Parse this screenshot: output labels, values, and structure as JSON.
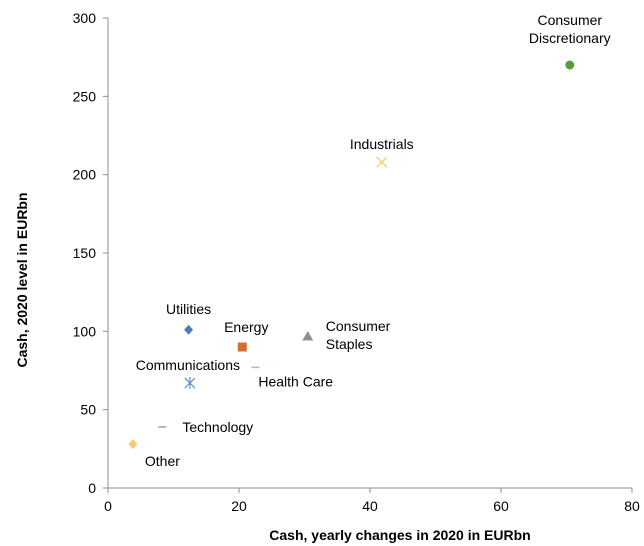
{
  "chart_data": {
    "type": "scatter",
    "xlabel": "Cash, yearly changes in 2020 in EURbn",
    "ylabel": "Cash, 2020 level in EURbn",
    "xlim": [
      0,
      80
    ],
    "ylim": [
      0,
      300
    ],
    "xticks": [
      "0",
      "20",
      "40",
      "60",
      "80"
    ],
    "yticks": [
      "0",
      "50",
      "100",
      "150",
      "200",
      "250",
      "300"
    ],
    "grid": false,
    "legend": "none",
    "points": [
      {
        "label": [
          "Consumer",
          "Discretionary"
        ],
        "x": 70.5,
        "y": 270,
        "marker": "circle",
        "color": "#5b9a3c"
      },
      {
        "label": [
          "Industrials"
        ],
        "x": 41.8,
        "y": 208,
        "marker": "x",
        "color": "#f2d27a"
      },
      {
        "label": [
          "Utilities"
        ],
        "x": 12.3,
        "y": 101,
        "marker": "diamond",
        "color": "#4a7ebb"
      },
      {
        "label": [
          "Energy"
        ],
        "x": 20.5,
        "y": 90,
        "marker": "square",
        "color": "#d86b2c"
      },
      {
        "label": [
          "Consumer",
          "Staples"
        ],
        "x": 30.5,
        "y": 97,
        "marker": "triangle",
        "color": "#8f8f8f"
      },
      {
        "label": [
          "Communications"
        ],
        "x": 12.5,
        "y": 67,
        "marker": "asterisk",
        "color": "#5b8fd6"
      },
      {
        "label": [
          "Health Care"
        ],
        "x": 22.5,
        "y": 77,
        "marker": "dash",
        "color": "#f4a090"
      },
      {
        "label": [
          "Technology"
        ],
        "x": 8.3,
        "y": 39,
        "marker": "dash",
        "color": "#a6a6a6"
      },
      {
        "label": [
          "Other"
        ],
        "x": 3.8,
        "y": 28,
        "marker": "diamond",
        "color": "#f7c77a"
      }
    ]
  }
}
